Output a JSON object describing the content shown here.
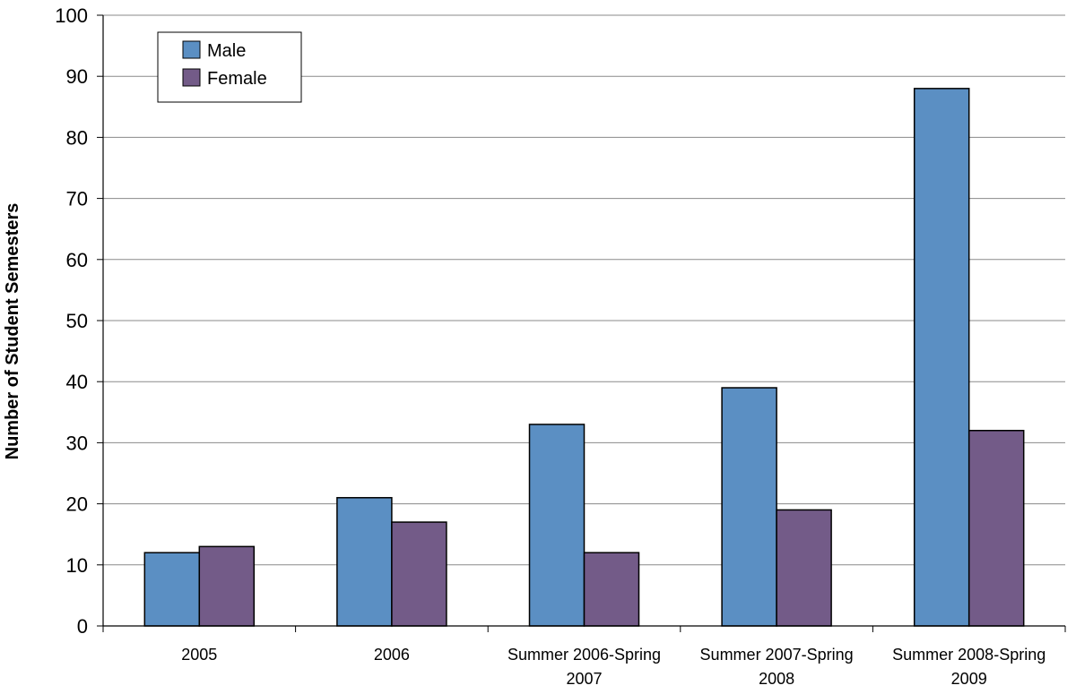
{
  "chart_data": {
    "type": "bar",
    "title": "",
    "xlabel": "",
    "ylabel": "Number of Student Semesters",
    "ylim": [
      0,
      100
    ],
    "yticks": [
      0,
      10,
      20,
      30,
      40,
      50,
      60,
      70,
      80,
      90,
      100
    ],
    "grid": true,
    "legend_position": "top-left",
    "categories": [
      [
        "2005"
      ],
      [
        "2006"
      ],
      [
        "Summer 2006-Spring",
        "2007"
      ],
      [
        "Summer 2007-Spring",
        "2008"
      ],
      [
        "Summer 2008-Spring",
        "2009"
      ]
    ],
    "series": [
      {
        "name": "Male",
        "color": "#5b8fc3",
        "values": [
          12,
          21,
          33,
          39,
          88
        ]
      },
      {
        "name": "Female",
        "color": "#735b88",
        "values": [
          13,
          17,
          12,
          19,
          32
        ]
      }
    ]
  }
}
